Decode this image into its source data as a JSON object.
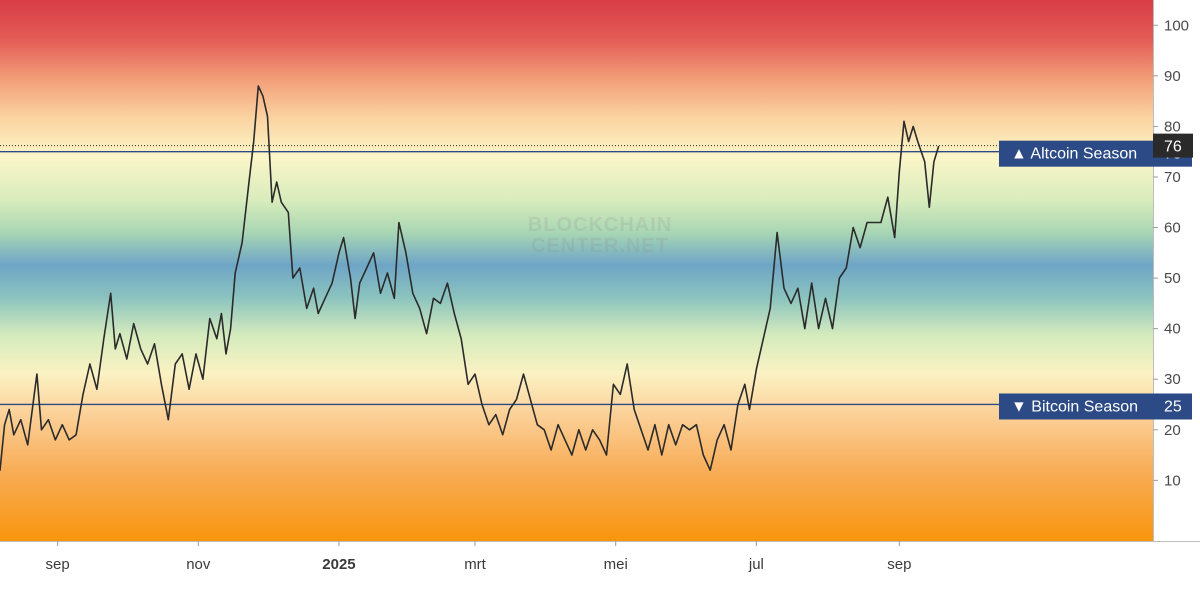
{
  "chart_data": {
    "type": "line",
    "title": "",
    "xlabel": "",
    "ylabel": "",
    "ylim": [
      -2,
      105
    ],
    "y_ticks": [
      10,
      20,
      30,
      40,
      50,
      60,
      70,
      80,
      90,
      100
    ],
    "x_tick_labels": [
      "sep",
      "nov",
      "2025",
      "mrt",
      "mei",
      "jul",
      "sep"
    ],
    "x_tick_dates": [
      "2024-09-01",
      "2024-11-01",
      "2025-01-01",
      "2025-03-01",
      "2025-05-01",
      "2025-07-01",
      "2025-09-01"
    ],
    "bold_x_tick": "2025",
    "x_range": [
      "2024-08-07",
      "2025-12-20"
    ],
    "grid": false,
    "background": "vertical color gradient: red (top) to orange, yellow, green, blue (middle) and back to orange (bottom)",
    "line_color": "#2b2b2b",
    "current_value": {
      "label": "76",
      "value": 76
    },
    "reference_lines": [
      {
        "label": "▲ Altcoin Season",
        "value": 75,
        "value_label": "75",
        "color": "#2c4a86"
      },
      {
        "label": "▼ Bitcoin Season",
        "value": 25,
        "value_label": "25",
        "color": "#2c4a86"
      }
    ],
    "series": [
      {
        "values": [
          [
            "2024-08-07",
            12
          ],
          [
            "2024-08-09",
            21
          ],
          [
            "2024-08-11",
            24
          ],
          [
            "2024-08-13",
            19
          ],
          [
            "2024-08-16",
            22
          ],
          [
            "2024-08-19",
            17
          ],
          [
            "2024-08-21",
            24
          ],
          [
            "2024-08-23",
            31
          ],
          [
            "2024-08-25",
            20
          ],
          [
            "2024-08-28",
            22
          ],
          [
            "2024-08-31",
            18
          ],
          [
            "2024-09-03",
            21
          ],
          [
            "2024-09-06",
            18
          ],
          [
            "2024-09-09",
            19
          ],
          [
            "2024-09-12",
            27
          ],
          [
            "2024-09-15",
            33
          ],
          [
            "2024-09-18",
            28
          ],
          [
            "2024-09-21",
            38
          ],
          [
            "2024-09-24",
            47
          ],
          [
            "2024-09-26",
            36
          ],
          [
            "2024-09-28",
            39
          ],
          [
            "2024-10-01",
            34
          ],
          [
            "2024-10-04",
            41
          ],
          [
            "2024-10-07",
            36
          ],
          [
            "2024-10-10",
            33
          ],
          [
            "2024-10-13",
            37
          ],
          [
            "2024-10-16",
            29
          ],
          [
            "2024-10-19",
            22
          ],
          [
            "2024-10-22",
            33
          ],
          [
            "2024-10-25",
            35
          ],
          [
            "2024-10-28",
            28
          ],
          [
            "2024-10-31",
            35
          ],
          [
            "2024-11-03",
            30
          ],
          [
            "2024-11-06",
            42
          ],
          [
            "2024-11-09",
            38
          ],
          [
            "2024-11-11",
            43
          ],
          [
            "2024-11-13",
            35
          ],
          [
            "2024-11-15",
            40
          ],
          [
            "2024-11-17",
            51
          ],
          [
            "2024-11-20",
            57
          ],
          [
            "2024-11-23",
            69
          ],
          [
            "2024-11-25",
            77
          ],
          [
            "2024-11-27",
            88
          ],
          [
            "2024-11-29",
            86
          ],
          [
            "2024-12-01",
            82
          ],
          [
            "2024-12-03",
            65
          ],
          [
            "2024-12-05",
            69
          ],
          [
            "2024-12-07",
            65
          ],
          [
            "2024-12-10",
            63
          ],
          [
            "2024-12-12",
            50
          ],
          [
            "2024-12-15",
            52
          ],
          [
            "2024-12-18",
            44
          ],
          [
            "2024-12-21",
            48
          ],
          [
            "2024-12-23",
            43
          ],
          [
            "2024-12-26",
            46
          ],
          [
            "2024-12-29",
            49
          ],
          [
            "2025-01-01",
            55
          ],
          [
            "2025-01-03",
            58
          ],
          [
            "2025-01-06",
            50
          ],
          [
            "2025-01-08",
            42
          ],
          [
            "2025-01-10",
            49
          ],
          [
            "2025-01-13",
            52
          ],
          [
            "2025-01-16",
            55
          ],
          [
            "2025-01-19",
            47
          ],
          [
            "2025-01-22",
            51
          ],
          [
            "2025-01-25",
            46
          ],
          [
            "2025-01-27",
            61
          ],
          [
            "2025-01-30",
            55
          ],
          [
            "2025-02-02",
            47
          ],
          [
            "2025-02-05",
            44
          ],
          [
            "2025-02-08",
            39
          ],
          [
            "2025-02-11",
            46
          ],
          [
            "2025-02-14",
            45
          ],
          [
            "2025-02-17",
            49
          ],
          [
            "2025-02-20",
            43
          ],
          [
            "2025-02-23",
            38
          ],
          [
            "2025-02-26",
            29
          ],
          [
            "2025-03-01",
            31
          ],
          [
            "2025-03-04",
            25
          ],
          [
            "2025-03-07",
            21
          ],
          [
            "2025-03-10",
            23
          ],
          [
            "2025-03-13",
            19
          ],
          [
            "2025-03-16",
            24
          ],
          [
            "2025-03-19",
            26
          ],
          [
            "2025-03-22",
            31
          ],
          [
            "2025-03-25",
            26
          ],
          [
            "2025-03-28",
            21
          ],
          [
            "2025-03-31",
            20
          ],
          [
            "2025-04-03",
            16
          ],
          [
            "2025-04-06",
            21
          ],
          [
            "2025-04-09",
            18
          ],
          [
            "2025-04-12",
            15
          ],
          [
            "2025-04-15",
            20
          ],
          [
            "2025-04-18",
            16
          ],
          [
            "2025-04-21",
            20
          ],
          [
            "2025-04-24",
            18
          ],
          [
            "2025-04-27",
            15
          ],
          [
            "2025-04-30",
            29
          ],
          [
            "2025-05-03",
            27
          ],
          [
            "2025-05-06",
            33
          ],
          [
            "2025-05-09",
            24
          ],
          [
            "2025-05-12",
            20
          ],
          [
            "2025-05-15",
            16
          ],
          [
            "2025-05-18",
            21
          ],
          [
            "2025-05-21",
            15
          ],
          [
            "2025-05-24",
            21
          ],
          [
            "2025-05-27",
            17
          ],
          [
            "2025-05-30",
            21
          ],
          [
            "2025-06-02",
            20
          ],
          [
            "2025-06-05",
            21
          ],
          [
            "2025-06-08",
            15
          ],
          [
            "2025-06-11",
            12
          ],
          [
            "2025-06-14",
            18
          ],
          [
            "2025-06-17",
            21
          ],
          [
            "2025-06-20",
            16
          ],
          [
            "2025-06-23",
            25
          ],
          [
            "2025-06-26",
            29
          ],
          [
            "2025-06-28",
            24
          ],
          [
            "2025-07-01",
            32
          ],
          [
            "2025-07-04",
            38
          ],
          [
            "2025-07-07",
            44
          ],
          [
            "2025-07-10",
            59
          ],
          [
            "2025-07-13",
            48
          ],
          [
            "2025-07-16",
            45
          ],
          [
            "2025-07-19",
            48
          ],
          [
            "2025-07-22",
            40
          ],
          [
            "2025-07-25",
            49
          ],
          [
            "2025-07-28",
            40
          ],
          [
            "2025-07-31",
            46
          ],
          [
            "2025-08-03",
            40
          ],
          [
            "2025-08-06",
            50
          ],
          [
            "2025-08-09",
            52
          ],
          [
            "2025-08-12",
            60
          ],
          [
            "2025-08-15",
            56
          ],
          [
            "2025-08-18",
            61
          ],
          [
            "2025-08-21",
            61
          ],
          [
            "2025-08-24",
            61
          ],
          [
            "2025-08-27",
            66
          ],
          [
            "2025-08-30",
            58
          ],
          [
            "2025-09-01",
            71
          ],
          [
            "2025-09-03",
            81
          ],
          [
            "2025-09-05",
            77
          ],
          [
            "2025-09-07",
            80
          ],
          [
            "2025-09-09",
            77
          ],
          [
            "2025-09-12",
            73
          ],
          [
            "2025-09-14",
            64
          ],
          [
            "2025-09-16",
            73
          ],
          [
            "2025-09-18",
            76
          ]
        ]
      }
    ]
  },
  "watermark": [
    "BLOCKCHAIN",
    "CENTER.NET"
  ],
  "colors": {
    "red": "#d94048",
    "orange": "#f39a1c",
    "yellow": "#fbf6c9",
    "green": "#a9dcb5",
    "blue": "#6ea5c6",
    "reference_line": "#2c4a86",
    "price_badge": "#2a2a2a"
  }
}
